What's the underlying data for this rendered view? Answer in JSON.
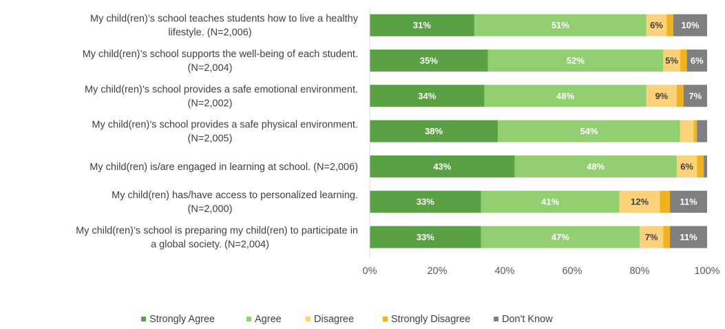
{
  "chart_data": {
    "type": "bar",
    "orientation": "horizontal",
    "stacked": true,
    "categories": [
      [
        "My child(ren)’s school teaches students how to live a healthy",
        "lifestyle. (N=2,006)"
      ],
      [
        "My child(ren)’s school supports the well-being of each student.",
        "(N=2,004)"
      ],
      [
        "My child(ren)’s school provides a safe emotional environment.",
        "(N=2,002)"
      ],
      [
        "My child(ren)’s school provides a safe physical environment.",
        "(N=2,005)"
      ],
      [
        "My child(ren) is/are engaged in learning at school. (N=2,006)"
      ],
      [
        "My child(ren) has/have access to personalized learning.",
        "(N=2,000)"
      ],
      [
        "My child(ren)’s school is preparing my child(ren) to participate in",
        "a global society. (N=2,004)"
      ]
    ],
    "series": [
      {
        "name": "Strongly Agree",
        "color": "#5aa145",
        "label_color": "#ffffff",
        "values": [
          31,
          35,
          34,
          38,
          43,
          33,
          33
        ]
      },
      {
        "name": "Agree",
        "color": "#92cf70",
        "label_color": "#ffffff",
        "values": [
          51,
          52,
          48,
          54,
          48,
          41,
          47
        ]
      },
      {
        "name": "Disagree",
        "color": "#fbd27a",
        "label_color": "#404040",
        "values": [
          6,
          5,
          9,
          4,
          6,
          12,
          7
        ]
      },
      {
        "name": "Strongly Disagree",
        "color": "#f0b21e",
        "label_color": "#404040",
        "values": [
          2,
          2,
          2,
          1,
          2,
          3,
          2
        ]
      },
      {
        "name": "Don't Know",
        "color": "#7f7f7f",
        "label_color": "#ffffff",
        "values": [
          10,
          6,
          7,
          3,
          1,
          11,
          11
        ]
      }
    ],
    "data_labels": [
      [
        "31%",
        "51%",
        "6%",
        "",
        "10%"
      ],
      [
        "35%",
        "52%",
        "5%",
        "",
        "6%"
      ],
      [
        "34%",
        "48%",
        "9%",
        "",
        "7%"
      ],
      [
        "38%",
        "54%",
        "",
        "",
        ""
      ],
      [
        "43%",
        "48%",
        "6%",
        "",
        ""
      ],
      [
        "33%",
        "41%",
        "12%",
        "",
        "11%"
      ],
      [
        "33%",
        "47%",
        "7%",
        "",
        "11%"
      ]
    ],
    "xlim": [
      0,
      100
    ],
    "xticks": [
      "0%",
      "20%",
      "40%",
      "60%",
      "80%",
      "100%"
    ],
    "xlabel": "",
    "ylabel": "",
    "grid": false,
    "legend_position": "bottom"
  }
}
